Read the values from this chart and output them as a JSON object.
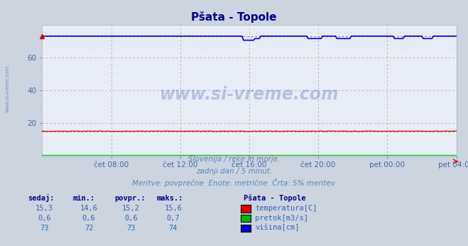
{
  "title": "Pšata - Topole",
  "bg_color": "#ccd4e0",
  "plot_bg_color": "#e8eef8",
  "xlabel_color": "#4466aa",
  "title_color": "#000088",
  "ylim": [
    0,
    80
  ],
  "xlim": [
    0,
    288
  ],
  "yticks": [
    20,
    40,
    60
  ],
  "xtick_positions": [
    48,
    96,
    144,
    192,
    240,
    288
  ],
  "xtick_labels": [
    "čet 08:00",
    "čet 12:00",
    "čet 16:00",
    "čet 20:00",
    "pet 00:00",
    "pet 04:00"
  ],
  "watermark": "www.si-vreme.com",
  "subtitle1": "Slovenija / reke in morje.",
  "subtitle2": "zadnji dan / 5 minut.",
  "subtitle3": "Meritve: povprečne  Enote: metrične  Črta: 5% meritev",
  "legend_title": "Pšata - Topole",
  "legend_items": [
    {
      "label": "temperatura[C]",
      "color": "#dd0000"
    },
    {
      "label": "pretok[m3/s]",
      "color": "#00bb00"
    },
    {
      "label": "višina[cm]",
      "color": "#0000dd"
    }
  ],
  "table_headers": [
    "sedaj:",
    "min.:",
    "povpr.:",
    "maks.:"
  ],
  "table_rows": [
    [
      "15,3",
      "14,6",
      "15,2",
      "15,6"
    ],
    [
      "0,6",
      "0,6",
      "0,6",
      "0,7"
    ],
    [
      "73",
      "72",
      "73",
      "74"
    ]
  ],
  "temp_avg": 15.2,
  "flow_avg": 0.6,
  "height_avg": 73,
  "temp_color": "#dd0000",
  "flow_color": "#00bb00",
  "height_color": "#0000dd",
  "temp_dot_color": "#ee6666",
  "height_dot_color": "#6666ee",
  "grid_major_color": "#dd8888",
  "grid_minor_color": "#ddbbbb",
  "grid_vert_color": "#dd8888",
  "side_label": "www.si-vreme.com",
  "figsize": [
    6.59,
    3.46
  ],
  "dpi": 100
}
